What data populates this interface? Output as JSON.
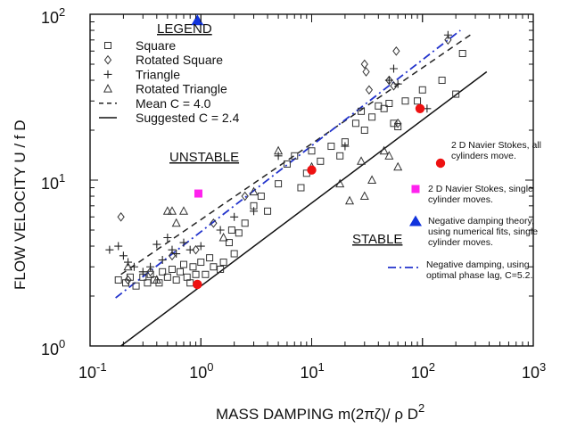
{
  "chart_data": {
    "type": "scatter",
    "xlabel": "MASS DAMPING m(2πζ)/ ρ D",
    "xlabel_exp": "2",
    "ylabel": "FLOW VELOCITY  U / f D",
    "x_log": true,
    "y_log": true,
    "xlim": [
      0.1,
      1000
    ],
    "ylim": [
      1,
      100
    ],
    "x_ticks": [
      {
        "base": "10",
        "exp": "-1",
        "value": 0.1
      },
      {
        "base": "10",
        "exp": "0",
        "value": 1
      },
      {
        "base": "10",
        "exp": "1",
        "value": 10
      },
      {
        "base": "10",
        "exp": "2",
        "value": 100
      },
      {
        "base": "10",
        "exp": "3",
        "value": 1000
      }
    ],
    "y_ticks": [
      {
        "base": "10",
        "exp": "0",
        "value": 1
      },
      {
        "base": "10",
        "exp": "1",
        "value": 10
      },
      {
        "base": "10",
        "exp": "2",
        "value": 100
      }
    ],
    "grid": false,
    "legend": {
      "title": "LEGEND",
      "items": [
        {
          "label": "Square",
          "marker": "square"
        },
        {
          "label": "Rotated Square",
          "marker": "diamond"
        },
        {
          "label": "Triangle",
          "marker": "plus"
        },
        {
          "label": "Rotated Triangle",
          "marker": "triangle"
        },
        {
          "label": "Mean  C = 4.0",
          "marker": "dashed-line"
        },
        {
          "label": "Suggested  C = 2.4",
          "marker": "solid-line"
        }
      ]
    },
    "region_labels": [
      "UNSTABLE",
      "STABLE"
    ],
    "lines": [
      {
        "name": "Mean  C = 4.0",
        "style": "dashed",
        "color": "#222222",
        "points": [
          [
            0.19,
            2.7
          ],
          [
            270,
            75
          ]
        ]
      },
      {
        "name": "Suggested  C = 2.4",
        "style": "solid",
        "color": "#111111",
        "points": [
          [
            0.19,
            1.0
          ],
          [
            380,
            45
          ]
        ]
      },
      {
        "name": "Negative damping, using optimal phase lag, C=5.2.",
        "style": "dashdot",
        "color": "#2233cc",
        "points": [
          [
            0.17,
            1.95
          ],
          [
            220,
            80
          ]
        ]
      }
    ],
    "series": [
      {
        "name": "Square",
        "marker": "square",
        "points": [
          [
            0.18,
            2.5
          ],
          [
            0.21,
            2.4
          ],
          [
            0.23,
            2.6
          ],
          [
            0.26,
            2.3
          ],
          [
            0.3,
            2.6
          ],
          [
            0.33,
            2.4
          ],
          [
            0.35,
            2.7
          ],
          [
            0.38,
            2.5
          ],
          [
            0.42,
            2.4
          ],
          [
            0.45,
            2.8
          ],
          [
            0.5,
            2.6
          ],
          [
            0.55,
            2.9
          ],
          [
            0.6,
            2.5
          ],
          [
            0.65,
            2.8
          ],
          [
            0.7,
            3.1
          ],
          [
            0.75,
            2.6
          ],
          [
            0.8,
            2.4
          ],
          [
            0.85,
            3.0
          ],
          [
            0.9,
            2.7
          ],
          [
            1.0,
            3.2
          ],
          [
            1.1,
            2.7
          ],
          [
            1.2,
            3.4
          ],
          [
            1.3,
            3.0
          ],
          [
            1.5,
            2.9
          ],
          [
            1.6,
            3.2
          ],
          [
            1.8,
            4.2
          ],
          [
            1.9,
            5.0
          ],
          [
            2.0,
            3.6
          ],
          [
            2.2,
            4.8
          ],
          [
            2.5,
            5.5
          ],
          [
            3.0,
            7.0
          ],
          [
            3.5,
            8.0
          ],
          [
            4.0,
            6.5
          ],
          [
            5.0,
            9.5
          ],
          [
            6.0,
            12.5
          ],
          [
            7.0,
            14.0
          ],
          [
            8.0,
            9.0
          ],
          [
            9.0,
            11.0
          ],
          [
            10.0,
            15.0
          ],
          [
            12.0,
            13.0
          ],
          [
            15.0,
            16.0
          ],
          [
            18.0,
            14.0
          ],
          [
            20.0,
            17.0
          ],
          [
            25.0,
            22.0
          ],
          [
            28.0,
            26.0
          ],
          [
            30.0,
            20.0
          ],
          [
            35.0,
            24.0
          ],
          [
            40.0,
            28.0
          ],
          [
            45.0,
            27.0
          ],
          [
            50.0,
            29.0
          ],
          [
            55.0,
            22.0
          ],
          [
            60.0,
            21.0
          ],
          [
            70.0,
            30.0
          ],
          [
            90.0,
            30.0
          ],
          [
            100.0,
            35.0
          ],
          [
            150.0,
            40.0
          ],
          [
            200.0,
            33.0
          ],
          [
            230.0,
            58.0
          ]
        ]
      },
      {
        "name": "Rotated Square",
        "marker": "diamond",
        "points": [
          [
            0.19,
            6.0
          ],
          [
            0.22,
            2.5
          ],
          [
            0.35,
            2.8
          ],
          [
            0.55,
            3.5
          ],
          [
            0.9,
            3.8
          ],
          [
            1.3,
            5.5
          ],
          [
            2.5,
            8.0
          ],
          [
            30.0,
            50.0
          ],
          [
            31.0,
            45.0
          ],
          [
            33.0,
            35.0
          ],
          [
            50.0,
            40.0
          ],
          [
            55.0,
            37.0
          ],
          [
            58.0,
            60.0
          ],
          [
            60.0,
            22.0
          ],
          [
            170.0,
            70.0
          ]
        ]
      },
      {
        "name": "Triangle",
        "marker": "plus",
        "points": [
          [
            0.15,
            3.8
          ],
          [
            0.18,
            4.0
          ],
          [
            0.2,
            3.5
          ],
          [
            0.22,
            3.2
          ],
          [
            0.25,
            3.0
          ],
          [
            0.3,
            2.8
          ],
          [
            0.35,
            3.0
          ],
          [
            0.4,
            4.1
          ],
          [
            0.45,
            3.3
          ],
          [
            0.5,
            4.5
          ],
          [
            0.55,
            3.8
          ],
          [
            0.6,
            3.6
          ],
          [
            0.7,
            4.2
          ],
          [
            0.8,
            3.8
          ],
          [
            1.0,
            4.0
          ],
          [
            1.5,
            5.0
          ],
          [
            2.0,
            6.0
          ],
          [
            3.0,
            6.5
          ],
          [
            5.0,
            14.0
          ],
          [
            20.0,
            16.0
          ],
          [
            50.0,
            40.0
          ],
          [
            55.0,
            47.0
          ],
          [
            60.0,
            38.0
          ],
          [
            110.0,
            27.0
          ],
          [
            170.0,
            75.0
          ]
        ]
      },
      {
        "name": "Rotated Triangle",
        "marker": "triangle",
        "points": [
          [
            0.22,
            3.0
          ],
          [
            0.4,
            2.5
          ],
          [
            0.5,
            6.5
          ],
          [
            0.55,
            6.5
          ],
          [
            0.6,
            5.5
          ],
          [
            0.7,
            6.5
          ],
          [
            1.6,
            4.5
          ],
          [
            3.0,
            8.5
          ],
          [
            5.0,
            15.0
          ],
          [
            10.0,
            12.0
          ],
          [
            18.0,
            9.5
          ],
          [
            22.0,
            7.5
          ],
          [
            28.0,
            13.0
          ],
          [
            30.0,
            8.0
          ],
          [
            35.0,
            10.0
          ],
          [
            45.0,
            15.0
          ],
          [
            50.0,
            14.0
          ],
          [
            60.0,
            12.0
          ]
        ]
      },
      {
        "name": "2 D Navier Stokes, all cylinders move.",
        "marker": "red-dot",
        "color": "#ee1111",
        "points": [
          [
            0.93,
            2.35
          ],
          [
            10.0,
            11.5
          ],
          [
            95.0,
            27.0
          ]
        ]
      },
      {
        "name": "2 D Navier Stokes, single cylinder moves.",
        "marker": "magenta-square",
        "color": "#ff22ee",
        "points": [
          [
            0.95,
            8.3
          ]
        ]
      },
      {
        "name": "Negative damping theory, using numerical fits, single cylinder moves.",
        "marker": "blue-triangle",
        "color": "#1133dd",
        "points": [
          [
            0.93,
            92.0
          ]
        ]
      }
    ],
    "annotations": [
      {
        "marker": "red-dot",
        "lines": [
          "2 D Navier Stokes, all",
          "cylinders move."
        ]
      },
      {
        "marker": "magenta-square",
        "lines": [
          "2 D Navier Stokes, single",
          "cylinder moves."
        ]
      },
      {
        "marker": "blue-triangle",
        "lines": [
          "Negative damping theory,",
          "using numerical fits, single",
          "cylinder moves."
        ]
      },
      {
        "marker": "dashdot-line",
        "lines": [
          "Negative damping, using",
          "optimal phase lag, C=5.2."
        ]
      }
    ]
  }
}
